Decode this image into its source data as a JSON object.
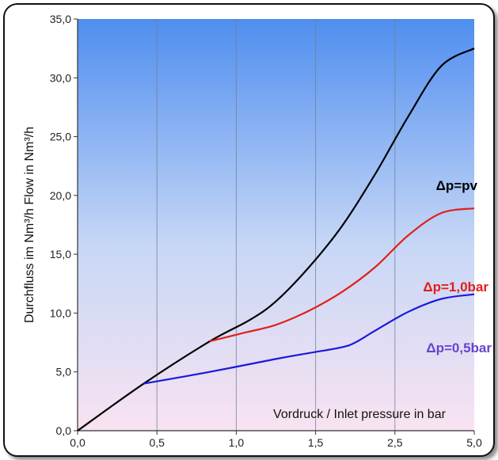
{
  "chart_data": {
    "type": "line",
    "xlabel": "Vordruck / Inlet pressure in bar",
    "ylabel": "Durchfluss im Nm³/h  Flow in Nm³/h",
    "xlim": [
      0,
      3
    ],
    "ylim": [
      0,
      35
    ],
    "x_ticks": [
      "0,0",
      "0,5",
      "1,0",
      "1,5",
      "2,5",
      "5,0"
    ],
    "y_ticks": [
      "0,0",
      "5,0",
      "10,0",
      "15,0",
      "20,0",
      "25,0",
      "30,0",
      "35,0"
    ],
    "grid": "vertical",
    "background": "gradient blue (top) to pink (bottom)",
    "series": [
      {
        "name": "Δp=pv",
        "color": "#000000",
        "points": [
          [
            0,
            0
          ],
          [
            0.5,
            4.0
          ],
          [
            1.0,
            7.6
          ],
          [
            1.3,
            9.4
          ],
          [
            1.5,
            11.0
          ],
          [
            1.75,
            13.9
          ],
          [
            2.0,
            17.4
          ],
          [
            2.25,
            21.8
          ],
          [
            2.5,
            26.7
          ],
          [
            2.75,
            31.0
          ],
          [
            3.0,
            32.5
          ]
        ]
      },
      {
        "name": "Δp=1,0bar",
        "color": "#e0201b",
        "points": [
          [
            1.0,
            7.6
          ],
          [
            1.25,
            8.3
          ],
          [
            1.5,
            9.0
          ],
          [
            1.75,
            10.2
          ],
          [
            2.0,
            11.8
          ],
          [
            2.25,
            13.9
          ],
          [
            2.5,
            16.6
          ],
          [
            2.75,
            18.5
          ],
          [
            3.0,
            18.9
          ]
        ]
      },
      {
        "name": "Δp=0,5bar",
        "color": "#1a1adb",
        "points": [
          [
            0.5,
            4.0
          ],
          [
            1.0,
            5.0
          ],
          [
            1.5,
            6.1
          ],
          [
            1.75,
            6.6
          ],
          [
            2.0,
            7.1
          ],
          [
            2.1,
            7.5
          ],
          [
            2.25,
            8.5
          ],
          [
            2.5,
            10.1
          ],
          [
            2.75,
            11.2
          ],
          [
            3.0,
            11.6
          ]
        ]
      }
    ],
    "label_colors": [
      "#000000",
      "#e0201b",
      "#6644d0"
    ]
  }
}
